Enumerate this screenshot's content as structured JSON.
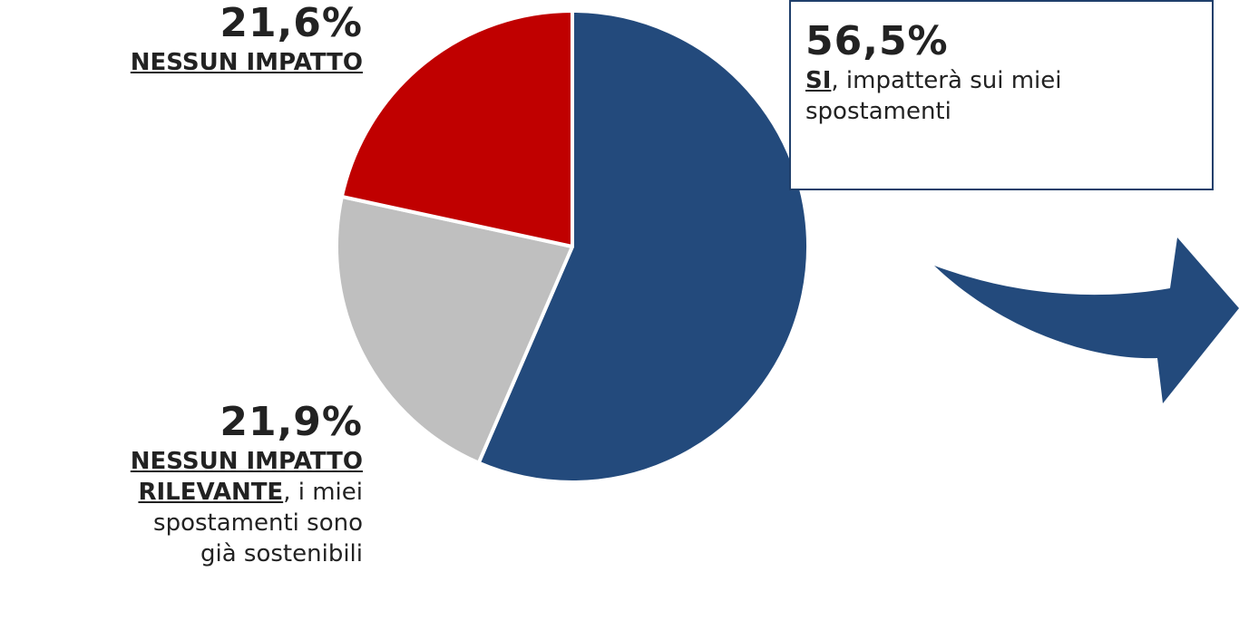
{
  "chart_data": {
    "type": "pie",
    "slices": [
      {
        "label": "SI, impatterà sui miei spostamenti",
        "value": 56.5,
        "color": "#234a7c"
      },
      {
        "label": "NESSUN IMPATTO RILEVANTE, i miei spostamenti sono già sostenibili",
        "value": 21.9,
        "color": "#bfbfbf"
      },
      {
        "label": "NESSUN IMPATTO",
        "value": 21.6,
        "color": "#c00000"
      }
    ],
    "start": "12 o'clock",
    "direction": "clockwise"
  },
  "labels": {
    "nessun": {
      "pct": "21,6%",
      "title": "NESSUN IMPATTO"
    },
    "rilevante": {
      "pct": "21,9%",
      "title_line1": "NESSUN IMPATTO",
      "title_line2": "RILEVANTE",
      "body_line1": ", i miei",
      "body_line2": "spostamenti sono",
      "body_line3": "già sostenibili"
    },
    "si": {
      "pct": "56,5%",
      "strong": "SI",
      "body_line1": ", impatterà sui miei",
      "body_line2": "spostamenti"
    }
  },
  "colors": {
    "accent": "#234a7c",
    "box_border": "#1f3f6b"
  }
}
